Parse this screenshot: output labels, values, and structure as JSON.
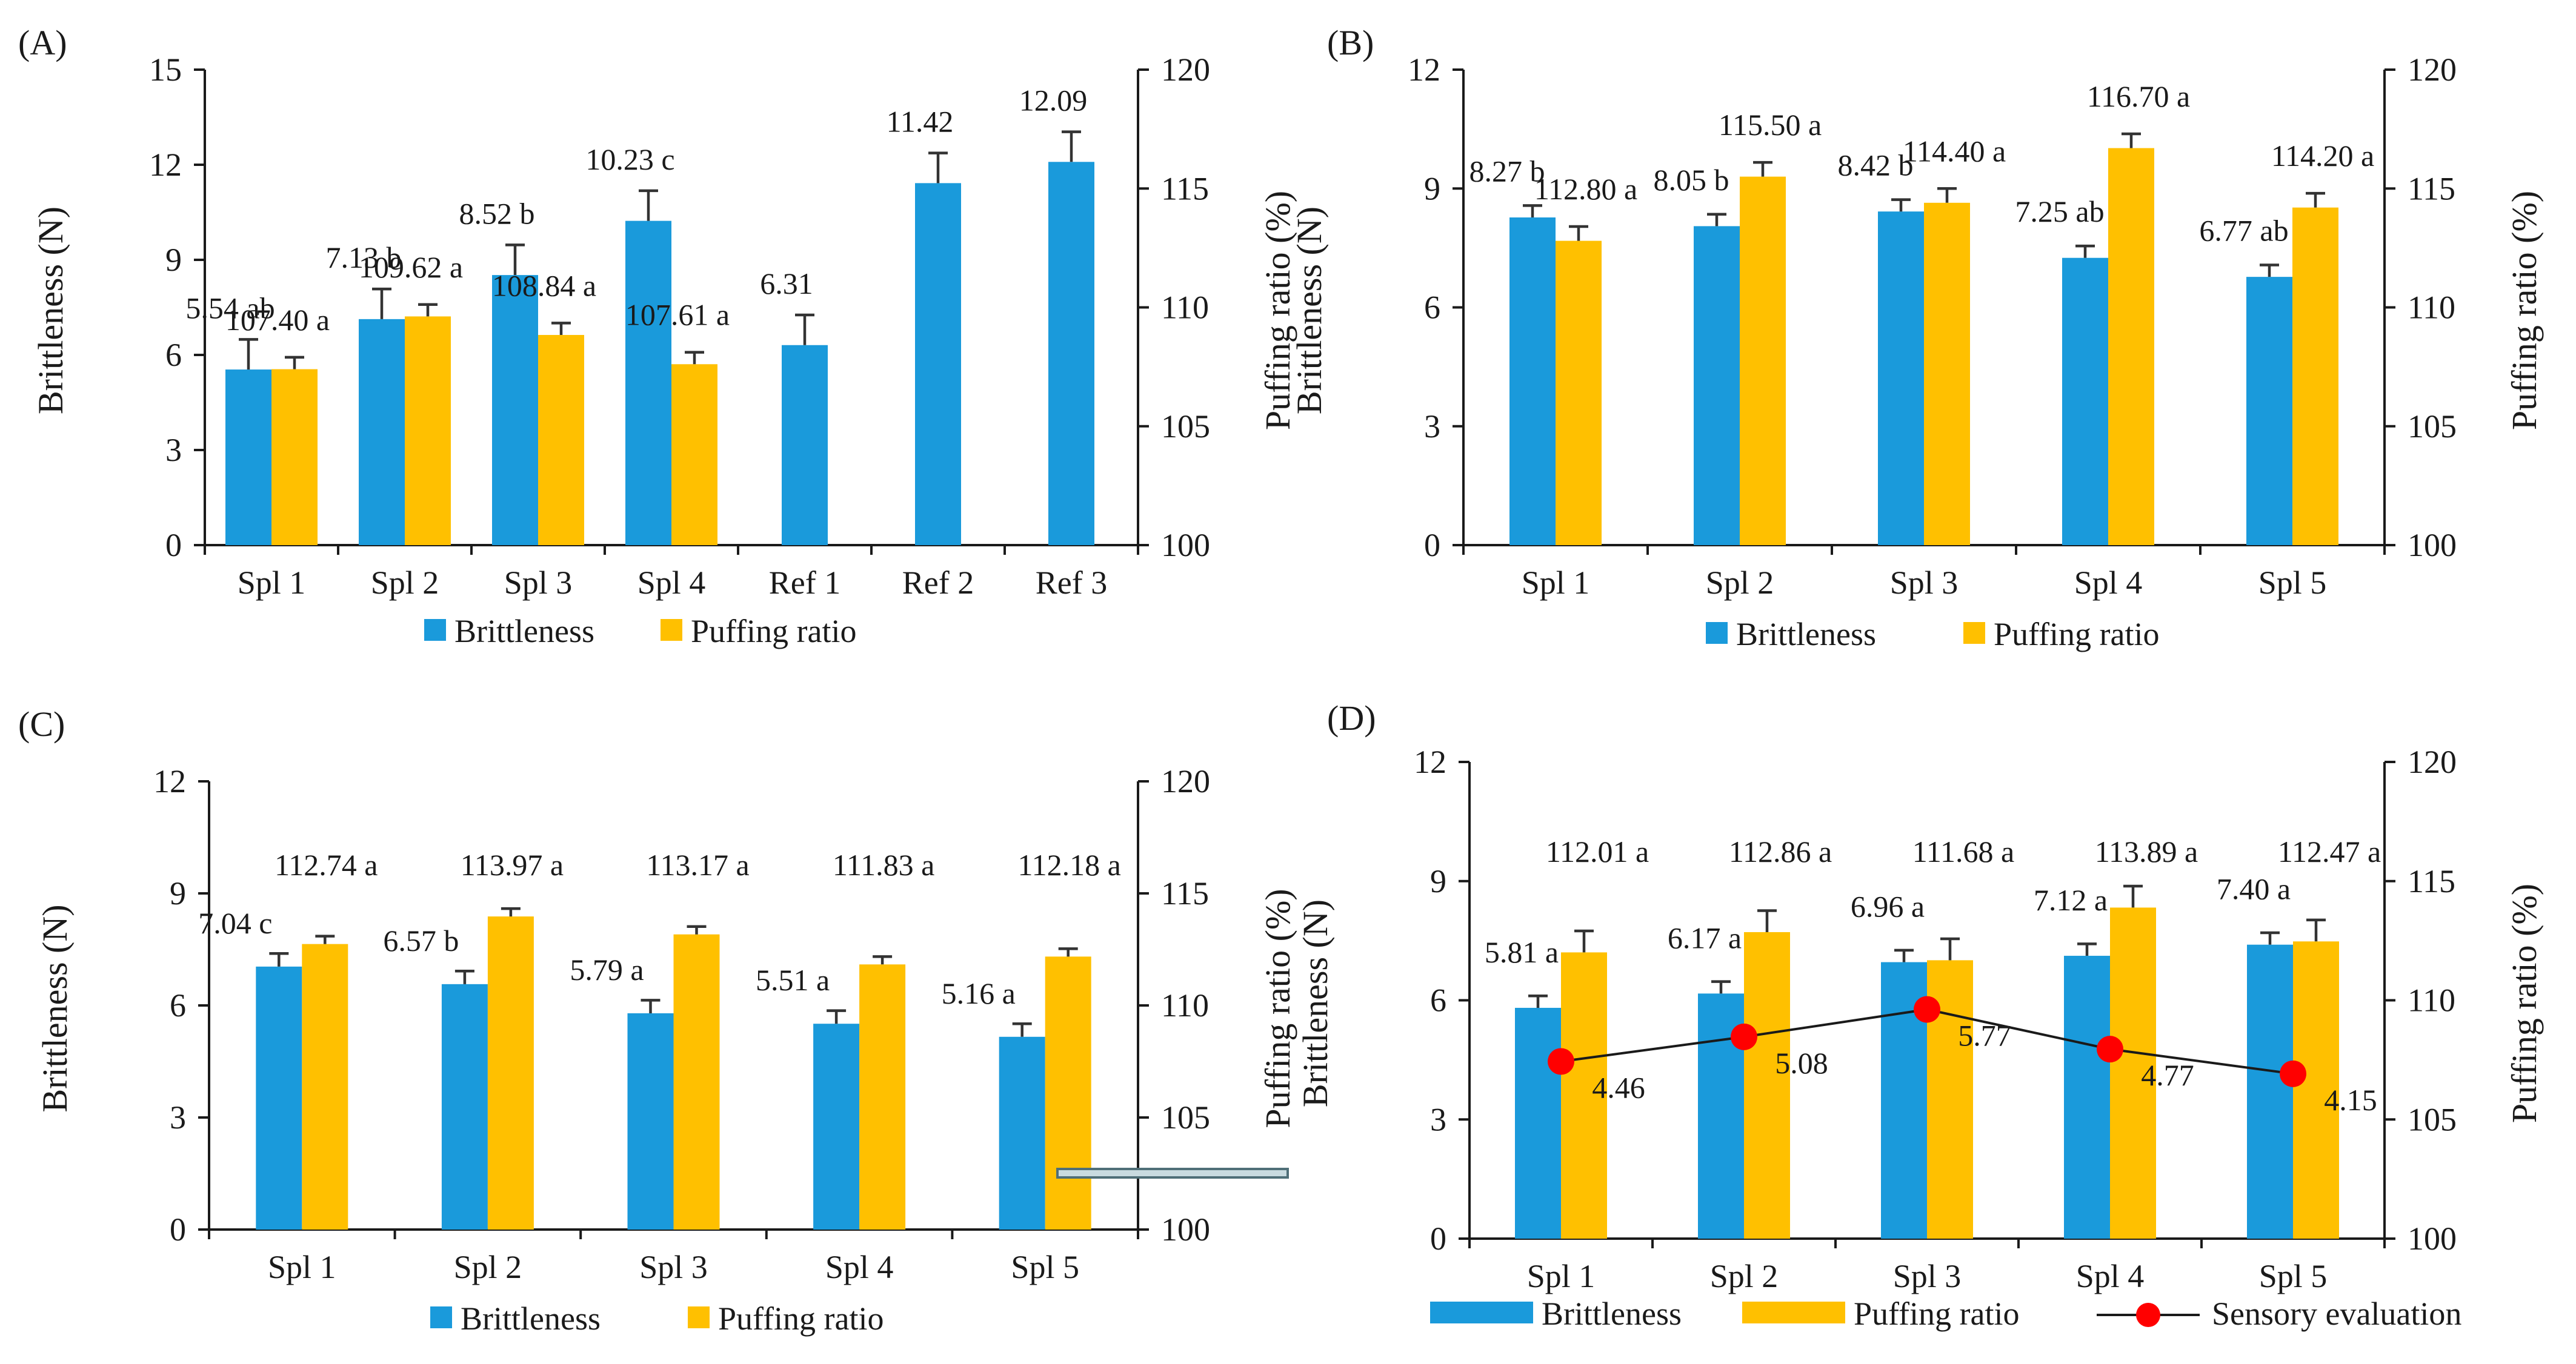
{
  "colors": {
    "brittleness": "#1A9ADB",
    "puffing": "#FFC000",
    "sensory_point": "#FF0000",
    "sensory_line": "#1A1A1A"
  },
  "chart_data": [
    {
      "type": "bar",
      "panel_label": "(A)",
      "categories": [
        "Spl 1",
        "Spl 2",
        "Spl 3",
        "Spl 4",
        "Ref 1",
        "Ref 2",
        "Ref 3"
      ],
      "ylabel": "Brittleness (N)",
      "y2label": "Puffing ratio (%)",
      "ylim": [
        0,
        15
      ],
      "yticks": [
        0,
        3,
        6,
        9,
        12,
        15
      ],
      "y2lim": [
        100,
        120
      ],
      "y2ticks": [
        100,
        105,
        110,
        115,
        120
      ],
      "legend": [
        "Brittleness",
        "Puffing ratio"
      ],
      "series": [
        {
          "name": "Brittleness",
          "axis": "left",
          "values": [
            5.54,
            7.13,
            8.52,
            10.23,
            6.31,
            11.42,
            12.09
          ],
          "errors": [
            0.95,
            0.95,
            0.95,
            0.95,
            0.95,
            0.95,
            0.95
          ],
          "labels": [
            "5.54 ab",
            "7.13 b",
            "8.52 b",
            "10.23 c",
            "6.31",
            "11.42",
            "12.09"
          ]
        },
        {
          "name": "Puffing ratio",
          "axis": "right",
          "values": [
            107.4,
            109.62,
            108.84,
            107.61,
            null,
            null,
            null
          ],
          "errors": [
            0.5,
            0.5,
            0.5,
            0.5,
            null,
            null,
            null
          ],
          "labels": [
            "107.40 a",
            "109.62 a",
            "108.84 a",
            "107.61 a",
            null,
            null,
            null
          ]
        }
      ]
    },
    {
      "type": "bar",
      "panel_label": "(B)",
      "categories": [
        "Spl 1",
        "Spl 2",
        "Spl 3",
        "Spl 4",
        "Spl 5"
      ],
      "ylabel": "Brittleness (N)",
      "y2label": "Puffing ratio (%)",
      "ylim": [
        0,
        12
      ],
      "yticks": [
        0,
        3,
        6,
        9,
        12
      ],
      "y2lim": [
        100,
        120
      ],
      "y2ticks": [
        100,
        105,
        110,
        115,
        120
      ],
      "legend": [
        "Brittleness",
        "Puffing ratio"
      ],
      "series": [
        {
          "name": "Brittleness",
          "axis": "left",
          "values": [
            8.27,
            8.05,
            8.42,
            7.25,
            6.77
          ],
          "errors": [
            0.3,
            0.3,
            0.3,
            0.3,
            0.3
          ],
          "labels": [
            "8.27 b",
            "8.05 b",
            "8.42 b",
            "7.25 ab",
            "6.77 ab"
          ]
        },
        {
          "name": "Puffing ratio",
          "axis": "right",
          "values": [
            112.8,
            115.5,
            114.4,
            116.7,
            114.2
          ],
          "errors": [
            0.6,
            0.6,
            0.6,
            0.6,
            0.6
          ],
          "labels": [
            "112.80 a",
            "115.50 a",
            "114.40 a",
            "116.70 a",
            "114.20 a"
          ]
        }
      ]
    },
    {
      "type": "bar",
      "panel_label": "(C)",
      "categories": [
        "Spl 1",
        "Spl 2",
        "Spl 3",
        "Spl 4",
        "Spl 5"
      ],
      "ylabel": "Brittleness (N)",
      "y2label": "Puffing ratio (%)",
      "ylim": [
        0,
        12
      ],
      "yticks": [
        0,
        3,
        6,
        9,
        12
      ],
      "y2lim": [
        100,
        120
      ],
      "y2ticks": [
        100,
        105,
        110,
        115,
        120
      ],
      "legend": [
        "Brittleness",
        "Puffing ratio"
      ],
      "series": [
        {
          "name": "Brittleness",
          "axis": "left",
          "values": [
            7.04,
            6.57,
            5.79,
            5.51,
            5.16
          ],
          "errors": [
            0.35,
            0.35,
            0.35,
            0.35,
            0.35
          ],
          "labels": [
            "7.04 c",
            "6.57 b",
            "5.79 a",
            "5.51 a",
            "5.16 a"
          ]
        },
        {
          "name": "Puffing ratio",
          "axis": "right",
          "values": [
            112.74,
            113.97,
            113.17,
            111.83,
            112.18
          ],
          "errors": [
            0.35,
            0.35,
            0.35,
            0.35,
            0.35
          ],
          "labels": [
            "112.74 a",
            "113.97 a",
            "113.17 a",
            "111.83 a",
            "112.18 a"
          ]
        }
      ]
    },
    {
      "type": "bar",
      "panel_label": "(D)",
      "categories": [
        "Spl 1",
        "Spl 2",
        "Spl 3",
        "Spl 4",
        "Spl 5"
      ],
      "ylabel": "Brittleness (N)",
      "y2label": "Puffing ratio (%)",
      "ylim": [
        0,
        12
      ],
      "yticks": [
        0,
        3,
        6,
        9,
        12
      ],
      "y2lim": [
        100,
        120
      ],
      "y2ticks": [
        100,
        105,
        110,
        115,
        120
      ],
      "legend": [
        "Brittleness",
        "Puffing ratio",
        "Sensory evaluation"
      ],
      "series": [
        {
          "name": "Brittleness",
          "axis": "left",
          "values": [
            5.81,
            6.17,
            6.96,
            7.12,
            7.4
          ],
          "errors": [
            0.3,
            0.3,
            0.3,
            0.3,
            0.3
          ],
          "labels": [
            "5.81 a",
            "6.17 a",
            "6.96 a",
            "7.12 a",
            "7.40 a"
          ]
        },
        {
          "name": "Puffing ratio",
          "axis": "right",
          "values": [
            112.01,
            112.86,
            111.68,
            113.89,
            112.47
          ],
          "errors": [
            0.9,
            0.9,
            0.9,
            0.9,
            0.9
          ],
          "labels": [
            "112.01 a",
            "112.86 a",
            "111.68 a",
            "113.89 a",
            "112.47 a"
          ]
        },
        {
          "name": "Sensory evaluation",
          "type": "line",
          "axis": "left",
          "values": [
            4.46,
            5.08,
            5.77,
            4.77,
            4.15
          ],
          "labels": [
            "4.46",
            "5.08",
            "5.77",
            "4.77",
            "4.15"
          ]
        }
      ]
    }
  ]
}
